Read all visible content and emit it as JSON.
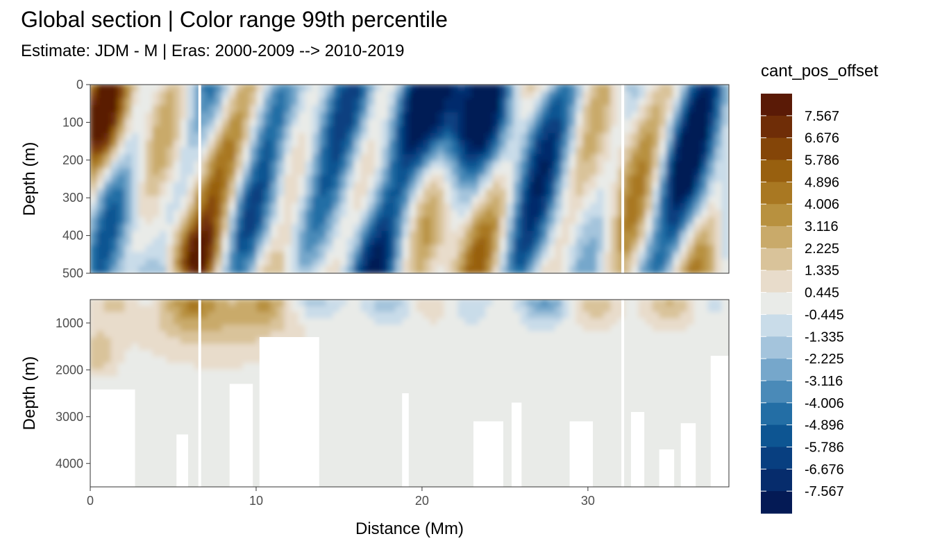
{
  "title": "Global section | Color range 99th percentile",
  "subtitle": "Estimate: JDM - M | Eras: 2000-2009 --> 2010-2019",
  "chart_data": {
    "type": "heatmap",
    "xlabel": "Distance (Mm)",
    "ylabel": "Depth (m)",
    "xlim": [
      0,
      38.5
    ],
    "x_ticks": [
      "0",
      "10",
      "20",
      "30"
    ],
    "panels": [
      {
        "name": "upper",
        "ylim": [
          500,
          0
        ],
        "y_ticks": [
          "0",
          "100",
          "200",
          "300",
          "400",
          "500"
        ]
      },
      {
        "name": "lower",
        "ylim": [
          4500,
          500
        ],
        "y_ticks": [
          "1000",
          "2000",
          "3000",
          "4000"
        ]
      }
    ],
    "legend": {
      "title": "cant_pos_offset",
      "placement": "right",
      "labels": [
        "7.567",
        "6.676",
        "5.786",
        "4.896",
        "4.006",
        "3.116",
        "2.225",
        "1.335",
        "0.445",
        "-0.445",
        "-1.335",
        "-2.225",
        "-3.116",
        "-4.006",
        "-4.896",
        "-5.786",
        "-6.676",
        "-7.567"
      ],
      "colors": [
        "#5a1a06",
        "#6f2d07",
        "#844508",
        "#98600f",
        "#a97822",
        "#b8913f",
        "#c9aa6a",
        "#d9c39a",
        "#e8dccb",
        "#e9ebe8",
        "#c9dce9",
        "#a4c4dc",
        "#76a7cb",
        "#4a8ab8",
        "#236ea5",
        "#0d5592",
        "#083f80",
        "#062c6c",
        "#041a55"
      ]
    },
    "gap_columns_x": [
      6.6,
      32.1
    ]
  }
}
